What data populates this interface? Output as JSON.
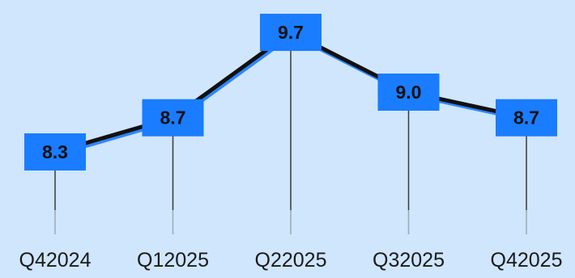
{
  "chart_data": {
    "type": "line",
    "categories": [
      "Q42024",
      "Q12025",
      "Q22025",
      "Q32025",
      "Q42025"
    ],
    "values": [
      8.3,
      8.7,
      9.7,
      9.0,
      8.7
    ],
    "value_labels": [
      "8.3",
      "8.7",
      "9.7",
      "9.0",
      "8.7"
    ],
    "title": "",
    "xlabel": "",
    "ylabel": "",
    "grid": false,
    "legend": "none",
    "colors": {
      "background": "#cfe6fc",
      "line": "#111111",
      "line_shadow": "#2f86ff",
      "label_box": "#1a7cff",
      "drop_line": "#3a3a3a"
    }
  }
}
